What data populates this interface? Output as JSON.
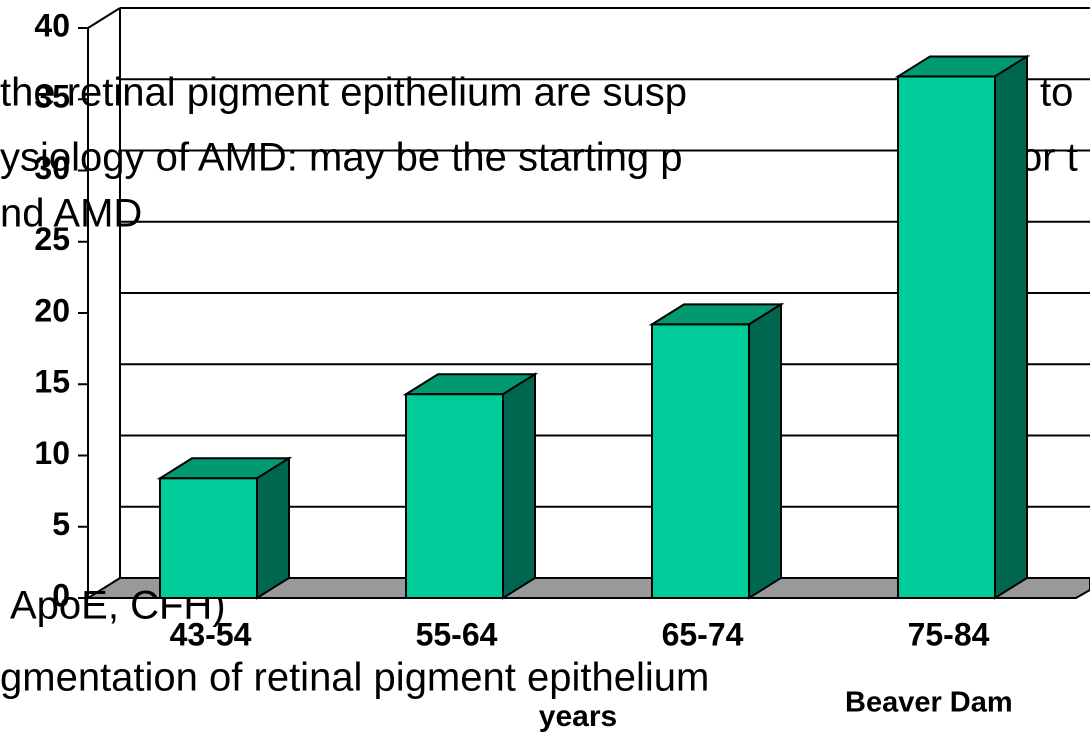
{
  "chart_data": {
    "type": "bar3d",
    "categories": [
      "43-54",
      "55-64",
      "65-74",
      "75-84"
    ],
    "values": [
      8.4,
      14.3,
      19.2,
      36.6
    ],
    "color": "#00cc99",
    "ylim": [
      0,
      40
    ],
    "yticks": [
      0,
      5,
      10,
      15,
      20,
      25,
      30,
      35,
      40
    ],
    "grid": true,
    "x_label": "years",
    "source": "Beaver Dam",
    "annotations": [
      "the retinal pigment epithelium are susp",
      "l to",
      "ysiology of AMD: may be the starting p",
      "or t",
      "nd AMD",
      "ApoE, CFH)",
      "gmentation of retinal pigment epithelium"
    ]
  }
}
